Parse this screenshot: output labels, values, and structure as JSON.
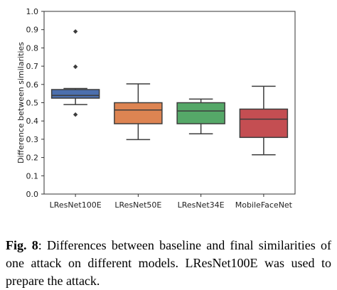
{
  "chart_data": {
    "type": "box",
    "title": "",
    "xlabel": "",
    "ylabel": "Difference between similarities",
    "ylim": [
      0.0,
      1.0
    ],
    "yticks": [
      "0.0",
      "0.1",
      "0.2",
      "0.3",
      "0.4",
      "0.5",
      "0.6",
      "0.7",
      "0.8",
      "0.9",
      "1.0"
    ],
    "grid": "none",
    "categories": [
      "LResNet100E",
      "LResNet50E",
      "LResNet34E",
      "MobileFaceNet"
    ],
    "series": [
      {
        "category": "LResNet100E",
        "whisker_low": 0.49,
        "q1": 0.525,
        "median": 0.54,
        "q3": 0.572,
        "whisker_high": 0.578,
        "outliers": [
          0.435,
          0.697,
          0.89
        ],
        "color": "#4c6fad"
      },
      {
        "category": "LResNet50E",
        "whisker_low": 0.298,
        "q1": 0.385,
        "median": 0.46,
        "q3": 0.5,
        "whisker_high": 0.603,
        "outliers": [],
        "color": "#dd8452"
      },
      {
        "category": "LResNet34E",
        "whisker_low": 0.33,
        "q1": 0.385,
        "median": 0.455,
        "q3": 0.5,
        "whisker_high": 0.52,
        "outliers": [],
        "color": "#55a868"
      },
      {
        "category": "MobileFaceNet",
        "whisker_low": 0.215,
        "q1": 0.31,
        "median": 0.41,
        "q3": 0.465,
        "whisker_high": 0.59,
        "outliers": [],
        "color": "#c44e52"
      }
    ]
  },
  "caption": {
    "label": "Fig. 8",
    "text": ": Differences between baseline and final similarities of one attack on different models. LResNet100E was used to prepare the attack."
  }
}
